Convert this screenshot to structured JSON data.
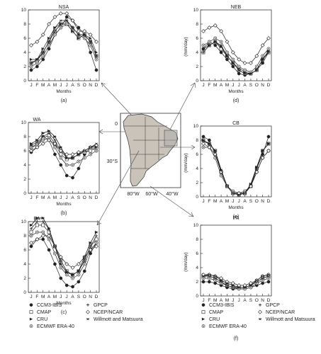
{
  "chart_data": [
    {
      "type": "line",
      "title": "NSA",
      "panel_label": "(a)",
      "xlabel": "Months",
      "ylabel": "(mm/day)",
      "ylim": [
        0,
        10
      ],
      "yticks": [
        0,
        2,
        4,
        6,
        8,
        10
      ],
      "categories": [
        "J",
        "F",
        "M",
        "A",
        "M",
        "J",
        "J",
        "A",
        "S",
        "O",
        "N",
        "D"
      ],
      "series": [
        {
          "name": "CCM3-IBIS",
          "values": [
            1.5,
            2.0,
            3.0,
            4.5,
            6.5,
            7.5,
            9.0,
            8.5,
            7.5,
            6.5,
            4.0,
            1.5
          ]
        },
        {
          "name": "CMAP",
          "values": [
            2.5,
            2.8,
            4.0,
            5.5,
            7.0,
            8.0,
            8.0,
            7.0,
            6.0,
            6.5,
            5.5,
            3.5
          ]
        },
        {
          "name": "CRU",
          "values": [
            3.0,
            3.0,
            4.5,
            6.0,
            7.5,
            8.0,
            8.0,
            7.0,
            6.0,
            6.5,
            6.0,
            4.0
          ]
        },
        {
          "name": "ECMWF ERA-40",
          "values": [
            2.0,
            2.5,
            3.5,
            5.0,
            6.5,
            7.5,
            8.0,
            7.5,
            6.5,
            6.0,
            5.0,
            3.0
          ]
        },
        {
          "name": "GPCP",
          "values": [
            2.5,
            3.0,
            4.0,
            5.5,
            7.0,
            8.0,
            8.5,
            7.5,
            6.5,
            6.5,
            5.5,
            3.5
          ]
        },
        {
          "name": "NCEP/NCAR",
          "values": [
            5.0,
            5.5,
            6.5,
            8.0,
            9.0,
            9.5,
            9.5,
            8.5,
            7.0,
            7.0,
            6.5,
            5.5
          ]
        },
        {
          "name": "Willmott and Matsuura",
          "values": [
            2.5,
            3.0,
            4.0,
            5.5,
            7.5,
            8.5,
            8.5,
            7.5,
            6.5,
            6.5,
            5.5,
            3.5
          ]
        }
      ]
    },
    {
      "type": "line",
      "title": "NEB",
      "panel_label": "(d)",
      "xlabel": "Months",
      "ylabel": "(mm/day)",
      "ylim": [
        0,
        10
      ],
      "yticks": [
        0,
        2,
        4,
        6,
        8,
        10
      ],
      "categories": [
        "J",
        "F",
        "M",
        "A",
        "M",
        "J",
        "J",
        "A",
        "S",
        "O",
        "N",
        "D"
      ],
      "series": [
        {
          "name": "CCM3-IBIS",
          "values": [
            4.5,
            5.5,
            5.0,
            4.0,
            3.0,
            2.0,
            1.0,
            0.8,
            1.0,
            1.5,
            2.5,
            4.0
          ]
        },
        {
          "name": "CMAP",
          "values": [
            4.0,
            5.0,
            5.5,
            4.5,
            3.5,
            2.5,
            1.5,
            1.0,
            1.0,
            1.5,
            3.0,
            4.0
          ]
        },
        {
          "name": "CRU",
          "values": [
            4.5,
            5.0,
            5.5,
            4.8,
            3.5,
            2.5,
            1.8,
            1.2,
            1.0,
            1.5,
            3.0,
            4.2
          ]
        },
        {
          "name": "ECMWF ERA-40",
          "values": [
            5.0,
            5.5,
            6.0,
            5.5,
            4.0,
            3.0,
            2.0,
            1.5,
            1.2,
            2.0,
            3.5,
            4.5
          ]
        },
        {
          "name": "GPCP",
          "values": [
            4.0,
            5.0,
            5.5,
            5.0,
            3.5,
            2.5,
            1.5,
            1.0,
            1.0,
            1.5,
            3.0,
            4.0
          ]
        },
        {
          "name": "NCEP/NCAR",
          "values": [
            7.0,
            7.5,
            7.8,
            7.0,
            5.5,
            4.0,
            3.0,
            2.5,
            2.5,
            3.5,
            5.0,
            6.0
          ]
        },
        {
          "name": "Willmott and Matsuura",
          "values": [
            4.5,
            5.0,
            5.5,
            4.8,
            3.5,
            2.5,
            1.5,
            1.0,
            1.0,
            1.5,
            3.0,
            4.2
          ]
        }
      ]
    },
    {
      "type": "line",
      "title": "WA",
      "panel_label": "(b)",
      "xlabel": "Months",
      "ylabel": "(mm/day)",
      "ylim": [
        0,
        10
      ],
      "yticks": [
        0,
        2,
        4,
        6,
        8,
        10
      ],
      "categories": [
        "J",
        "F",
        "M",
        "A",
        "M",
        "J",
        "J",
        "A",
        "S",
        "O",
        "N",
        "D"
      ],
      "series": [
        {
          "name": "CCM3-IBIS",
          "values": [
            5.8,
            6.5,
            8.0,
            7.5,
            5.5,
            4.0,
            2.5,
            2.2,
            3.5,
            5.5,
            6.5,
            6.0
          ]
        },
        {
          "name": "CMAP",
          "values": [
            6.5,
            7.0,
            7.8,
            8.2,
            7.0,
            5.5,
            4.8,
            5.0,
            5.5,
            5.8,
            6.0,
            6.5
          ]
        },
        {
          "name": "CRU",
          "values": [
            7.0,
            7.5,
            8.5,
            8.8,
            8.0,
            6.5,
            5.0,
            5.0,
            5.5,
            6.0,
            6.5,
            6.5
          ]
        },
        {
          "name": "ECMWF ERA-40",
          "values": [
            6.5,
            6.8,
            7.5,
            7.8,
            6.5,
            5.0,
            4.0,
            4.0,
            4.5,
            5.0,
            5.5,
            6.0
          ]
        },
        {
          "name": "GPCP",
          "values": [
            6.8,
            7.2,
            8.0,
            8.5,
            7.5,
            6.0,
            5.0,
            5.0,
            5.5,
            6.0,
            6.5,
            6.8
          ]
        },
        {
          "name": "NCEP/NCAR",
          "values": [
            6.0,
            6.5,
            7.0,
            7.5,
            7.0,
            6.0,
            5.5,
            5.5,
            5.8,
            6.0,
            6.5,
            6.8
          ]
        },
        {
          "name": "Willmott and Matsuura",
          "values": [
            7.0,
            7.5,
            8.5,
            8.8,
            8.0,
            6.5,
            5.0,
            5.0,
            5.5,
            6.0,
            6.5,
            7.0
          ]
        }
      ]
    },
    {
      "type": "line",
      "title": "CB",
      "panel_label": "(e)",
      "xlabel": "Months",
      "ylabel": "(mm/day)",
      "ylim": [
        0,
        10
      ],
      "yticks": [
        0,
        2,
        4,
        6,
        8,
        10
      ],
      "categories": [
        "J",
        "F",
        "M",
        "A",
        "M",
        "J",
        "J",
        "A",
        "S",
        "O",
        "N",
        "D"
      ],
      "series": [
        {
          "name": "CCM3-IBIS",
          "values": [
            8.5,
            8.0,
            6.0,
            3.5,
            1.5,
            0.5,
            0.5,
            0.5,
            1.5,
            4.0,
            6.0,
            8.5
          ]
        },
        {
          "name": "CMAP",
          "values": [
            8.0,
            7.5,
            6.5,
            3.5,
            1.5,
            0.5,
            0.3,
            0.5,
            1.5,
            4.0,
            6.5,
            7.5
          ]
        },
        {
          "name": "CRU",
          "values": [
            8.0,
            7.5,
            6.5,
            3.8,
            1.5,
            0.5,
            0.3,
            0.5,
            1.8,
            4.2,
            6.5,
            7.5
          ]
        },
        {
          "name": "ECMWF ERA-40",
          "values": [
            7.0,
            7.0,
            5.5,
            3.0,
            1.5,
            0.8,
            0.5,
            0.8,
            1.5,
            3.5,
            5.5,
            6.5
          ]
        },
        {
          "name": "GPCP",
          "values": [
            7.8,
            7.5,
            6.5,
            3.5,
            1.5,
            0.5,
            0.3,
            0.5,
            1.5,
            4.0,
            6.5,
            7.5
          ]
        },
        {
          "name": "NCEP/NCAR",
          "values": [
            7.5,
            7.0,
            6.0,
            3.5,
            1.5,
            0.5,
            0.5,
            0.5,
            1.5,
            3.5,
            5.5,
            6.5
          ]
        },
        {
          "name": "Willmott and Matsuura",
          "values": [
            8.0,
            7.5,
            6.5,
            3.8,
            1.5,
            0.5,
            0.3,
            0.5,
            1.8,
            4.2,
            6.5,
            7.5
          ]
        }
      ]
    },
    {
      "type": "line",
      "title": "EA",
      "panel_label": "(c)",
      "xlabel": "Months",
      "ylabel": "(mm/day)",
      "ylim": [
        0,
        10
      ],
      "yticks": [
        0,
        2,
        4,
        6,
        8,
        10
      ],
      "categories": [
        "J",
        "F",
        "M",
        "A",
        "M",
        "J",
        "J",
        "A",
        "S",
        "O",
        "N",
        "D"
      ],
      "series": [
        {
          "name": "CCM3-IBIS",
          "values": [
            6.5,
            7.5,
            7.5,
            6.0,
            4.0,
            2.0,
            1.0,
            0.8,
            1.5,
            3.0,
            5.5,
            7.0
          ]
        },
        {
          "name": "CMAP",
          "values": [
            8.5,
            9.5,
            9.5,
            8.5,
            6.5,
            4.5,
            3.0,
            2.5,
            3.0,
            4.5,
            6.5,
            7.5
          ]
        },
        {
          "name": "CRU",
          "values": [
            9.5,
            10.5,
            10.5,
            9.0,
            6.5,
            4.0,
            2.8,
            2.5,
            3.0,
            5.0,
            7.0,
            8.5
          ]
        },
        {
          "name": "ECMWF ERA-40",
          "values": [
            8.0,
            8.5,
            8.5,
            7.5,
            5.5,
            3.5,
            2.5,
            2.0,
            2.5,
            4.0,
            6.0,
            7.0
          ]
        },
        {
          "name": "GPCP",
          "values": [
            9.0,
            10.0,
            10.0,
            9.0,
            6.5,
            4.5,
            3.0,
            2.5,
            3.0,
            4.5,
            6.5,
            8.0
          ]
        },
        {
          "name": "NCEP/NCAR",
          "values": [
            7.0,
            7.5,
            8.0,
            8.0,
            6.5,
            5.0,
            4.0,
            3.5,
            4.0,
            5.0,
            6.0,
            6.5
          ]
        },
        {
          "name": "Willmott and Matsuura",
          "values": [
            9.5,
            10.5,
            10.5,
            9.0,
            6.5,
            4.0,
            2.8,
            2.5,
            3.0,
            5.0,
            7.0,
            8.5
          ]
        }
      ]
    },
    {
      "type": "line",
      "title": "PA",
      "panel_label": "(f)",
      "xlabel": "Months",
      "ylabel": "(mm/day)",
      "ylim": [
        0,
        10
      ],
      "yticks": [
        0,
        2,
        4,
        6,
        8,
        10
      ],
      "categories": [
        "J",
        "F",
        "M",
        "A",
        "M",
        "J",
        "J",
        "A",
        "S",
        "O",
        "N",
        "D"
      ],
      "series": [
        {
          "name": "CCM3-IBIS",
          "values": [
            2.0,
            2.0,
            1.8,
            1.5,
            1.2,
            1.0,
            1.0,
            1.0,
            1.2,
            1.5,
            1.8,
            2.0
          ]
        },
        {
          "name": "CMAP",
          "values": [
            2.8,
            2.8,
            2.5,
            2.0,
            1.5,
            1.2,
            1.2,
            1.2,
            1.5,
            2.0,
            2.5,
            2.8
          ]
        },
        {
          "name": "CRU",
          "values": [
            3.0,
            3.0,
            2.8,
            2.2,
            1.8,
            1.5,
            1.2,
            1.2,
            1.5,
            2.2,
            2.8,
            3.0
          ]
        },
        {
          "name": "ECMWF ERA-40",
          "values": [
            2.5,
            2.5,
            2.2,
            1.8,
            1.5,
            1.2,
            1.0,
            1.0,
            1.2,
            1.8,
            2.2,
            2.5
          ]
        },
        {
          "name": "GPCP",
          "values": [
            2.8,
            2.8,
            2.5,
            2.0,
            1.5,
            1.2,
            1.2,
            1.2,
            1.5,
            2.0,
            2.5,
            2.8
          ]
        },
        {
          "name": "NCEP/NCAR",
          "values": [
            3.0,
            3.0,
            2.8,
            2.5,
            2.0,
            1.8,
            1.5,
            1.5,
            1.8,
            2.2,
            2.8,
            3.0
          ]
        },
        {
          "name": "Willmott and Matsuura",
          "values": [
            2.8,
            3.0,
            2.8,
            2.2,
            1.8,
            1.5,
            1.2,
            1.2,
            1.5,
            2.2,
            2.8,
            3.0
          ]
        }
      ]
    }
  ],
  "legend": {
    "items": [
      {
        "label": "CCM3-IBIS",
        "marker": "filled-circle"
      },
      {
        "label": "CMAP",
        "marker": "open-square"
      },
      {
        "label": "CRU",
        "marker": "filled-triangle-right"
      },
      {
        "label": "ECMWF ERA-40",
        "marker": "circled-dot"
      },
      {
        "label": "GPCP",
        "marker": "plus"
      },
      {
        "label": "NCEP/NCAR",
        "marker": "open-diamond"
      },
      {
        "label": "Willmott and Matsuura",
        "marker": "asterisk"
      }
    ]
  },
  "map": {
    "lat_labels": [
      "0",
      "30°S"
    ],
    "lon_labels": [
      "80°W",
      "60°W",
      "40°W"
    ],
    "colors": {
      "land": "#c9c3ba",
      "border": "#333333",
      "highlight": "#aaaaaa"
    }
  },
  "colors": {
    "line": "#222222",
    "marker_fill": "#222222",
    "background": "#ffffff"
  }
}
